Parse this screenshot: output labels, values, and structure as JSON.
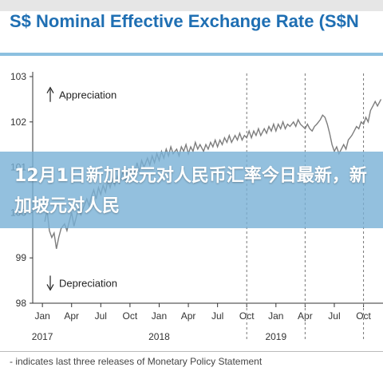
{
  "header": {
    "title": "S$ Nominal Effective Exchange Rate (S$N"
  },
  "overlay": {
    "text": "12月1日新加坡元对人民币汇率今日最新，新加坡元对人民"
  },
  "footnote": "- indicates last three releases of Monetary Policy Statement",
  "colors": {
    "title": "#1f6fb3",
    "line": "#7d7d7d",
    "overlay": "#78b0d6"
  },
  "chart_data": {
    "type": "line",
    "title": "S$ Nominal Effective Exchange Rate (S$N",
    "xlabel": "",
    "ylabel": "",
    "ylim": [
      98,
      103
    ],
    "yticks": [
      98,
      99,
      100,
      101,
      102,
      103
    ],
    "xlim": [
      2016.917,
      2019.917
    ],
    "xticks": [
      {
        "x": 2017.0,
        "label": "Jan"
      },
      {
        "x": 2017.25,
        "label": "Apr"
      },
      {
        "x": 2017.5,
        "label": "Jul"
      },
      {
        "x": 2017.75,
        "label": "Oct"
      },
      {
        "x": 2018.0,
        "label": "Jan"
      },
      {
        "x": 2018.25,
        "label": "Apr"
      },
      {
        "x": 2018.5,
        "label": "Jul"
      },
      {
        "x": 2018.75,
        "label": "Oct"
      },
      {
        "x": 2019.0,
        "label": "Jan"
      },
      {
        "x": 2019.25,
        "label": "Apr"
      },
      {
        "x": 2019.5,
        "label": "Jul"
      },
      {
        "x": 2019.75,
        "label": "Oct"
      }
    ],
    "year_labels": [
      {
        "x": 2017.0,
        "label": "2017"
      },
      {
        "x": 2018.0,
        "label": "2018"
      },
      {
        "x": 2019.0,
        "label": "2019"
      }
    ],
    "annotations": [
      {
        "text": "Appreciation",
        "arrow": "up",
        "y": 102.6
      },
      {
        "text": "Depreciation",
        "arrow": "down",
        "y": 98.45
      }
    ],
    "vlines": [
      2018.75,
      2019.25,
      2019.75
    ],
    "series": [
      {
        "values": [
          [
            2017.02,
            99.8
          ],
          [
            2017.04,
            100.05
          ],
          [
            2017.06,
            99.6
          ],
          [
            2017.08,
            99.45
          ],
          [
            2017.1,
            99.55
          ],
          [
            2017.12,
            99.2
          ],
          [
            2017.14,
            99.45
          ],
          [
            2017.16,
            99.65
          ],
          [
            2017.19,
            99.75
          ],
          [
            2017.21,
            99.6
          ],
          [
            2017.23,
            99.8
          ],
          [
            2017.25,
            100.0
          ],
          [
            2017.27,
            99.7
          ],
          [
            2017.29,
            99.9
          ],
          [
            2017.31,
            100.1
          ],
          [
            2017.33,
            99.95
          ],
          [
            2017.35,
            100.1
          ],
          [
            2017.38,
            100.3
          ],
          [
            2017.4,
            100.15
          ],
          [
            2017.42,
            100.35
          ],
          [
            2017.44,
            100.5
          ],
          [
            2017.46,
            100.3
          ],
          [
            2017.48,
            100.55
          ],
          [
            2017.5,
            100.4
          ],
          [
            2017.52,
            100.6
          ],
          [
            2017.54,
            100.45
          ],
          [
            2017.56,
            100.7
          ],
          [
            2017.58,
            100.55
          ],
          [
            2017.6,
            100.75
          ],
          [
            2017.62,
            100.6
          ],
          [
            2017.64,
            100.8
          ],
          [
            2017.66,
            100.65
          ],
          [
            2017.69,
            100.9
          ],
          [
            2017.71,
            100.7
          ],
          [
            2017.73,
            100.95
          ],
          [
            2017.75,
            100.8
          ],
          [
            2017.77,
            101.0
          ],
          [
            2017.79,
            100.85
          ],
          [
            2017.81,
            101.1
          ],
          [
            2017.83,
            100.9
          ],
          [
            2017.85,
            101.15
          ],
          [
            2017.87,
            101.0
          ],
          [
            2017.9,
            101.2
          ],
          [
            2017.92,
            101.05
          ],
          [
            2017.94,
            101.25
          ],
          [
            2017.96,
            101.1
          ],
          [
            2017.98,
            101.3
          ],
          [
            2018.0,
            101.15
          ],
          [
            2018.02,
            101.35
          ],
          [
            2018.04,
            101.2
          ],
          [
            2018.06,
            101.4
          ],
          [
            2018.08,
            101.25
          ],
          [
            2018.1,
            101.45
          ],
          [
            2018.12,
            101.3
          ],
          [
            2018.15,
            101.4
          ],
          [
            2018.17,
            101.25
          ],
          [
            2018.19,
            101.45
          ],
          [
            2018.21,
            101.35
          ],
          [
            2018.23,
            101.5
          ],
          [
            2018.25,
            101.3
          ],
          [
            2018.27,
            101.45
          ],
          [
            2018.29,
            101.35
          ],
          [
            2018.31,
            101.55
          ],
          [
            2018.33,
            101.4
          ],
          [
            2018.35,
            101.5
          ],
          [
            2018.38,
            101.35
          ],
          [
            2018.4,
            101.5
          ],
          [
            2018.42,
            101.4
          ],
          [
            2018.44,
            101.55
          ],
          [
            2018.46,
            101.45
          ],
          [
            2018.48,
            101.6
          ],
          [
            2018.5,
            101.45
          ],
          [
            2018.52,
            101.6
          ],
          [
            2018.54,
            101.5
          ],
          [
            2018.56,
            101.65
          ],
          [
            2018.58,
            101.55
          ],
          [
            2018.6,
            101.7
          ],
          [
            2018.62,
            101.55
          ],
          [
            2018.65,
            101.7
          ],
          [
            2018.67,
            101.6
          ],
          [
            2018.69,
            101.75
          ],
          [
            2018.71,
            101.6
          ],
          [
            2018.73,
            101.7
          ],
          [
            2018.75,
            101.65
          ],
          [
            2018.77,
            101.8
          ],
          [
            2018.79,
            101.65
          ],
          [
            2018.81,
            101.8
          ],
          [
            2018.83,
            101.7
          ],
          [
            2018.85,
            101.85
          ],
          [
            2018.87,
            101.7
          ],
          [
            2018.9,
            101.85
          ],
          [
            2018.92,
            101.75
          ],
          [
            2018.94,
            101.9
          ],
          [
            2018.96,
            101.8
          ],
          [
            2018.98,
            101.95
          ],
          [
            2019.0,
            101.8
          ],
          [
            2019.02,
            101.95
          ],
          [
            2019.04,
            101.85
          ],
          [
            2019.06,
            102.0
          ],
          [
            2019.08,
            101.85
          ],
          [
            2019.1,
            101.95
          ],
          [
            2019.12,
            101.9
          ],
          [
            2019.15,
            102.0
          ],
          [
            2019.17,
            101.9
          ],
          [
            2019.19,
            102.05
          ],
          [
            2019.21,
            101.95
          ],
          [
            2019.23,
            101.9
          ],
          [
            2019.25,
            101.85
          ],
          [
            2019.27,
            101.95
          ],
          [
            2019.29,
            101.85
          ],
          [
            2019.31,
            101.8
          ],
          [
            2019.33,
            101.9
          ],
          [
            2019.35,
            101.95
          ],
          [
            2019.38,
            102.05
          ],
          [
            2019.4,
            102.15
          ],
          [
            2019.42,
            102.1
          ],
          [
            2019.44,
            101.95
          ],
          [
            2019.46,
            101.75
          ],
          [
            2019.48,
            101.5
          ],
          [
            2019.5,
            101.35
          ],
          [
            2019.52,
            101.45
          ],
          [
            2019.54,
            101.3
          ],
          [
            2019.56,
            101.4
          ],
          [
            2019.58,
            101.5
          ],
          [
            2019.6,
            101.4
          ],
          [
            2019.62,
            101.6
          ],
          [
            2019.65,
            101.7
          ],
          [
            2019.67,
            101.8
          ],
          [
            2019.69,
            101.9
          ],
          [
            2019.71,
            101.85
          ],
          [
            2019.73,
            102.0
          ],
          [
            2019.75,
            101.95
          ],
          [
            2019.77,
            102.1
          ],
          [
            2019.79,
            102.0
          ],
          [
            2019.81,
            102.25
          ],
          [
            2019.83,
            102.35
          ],
          [
            2019.85,
            102.45
          ],
          [
            2019.87,
            102.35
          ],
          [
            2019.9,
            102.5
          ]
        ]
      }
    ]
  }
}
